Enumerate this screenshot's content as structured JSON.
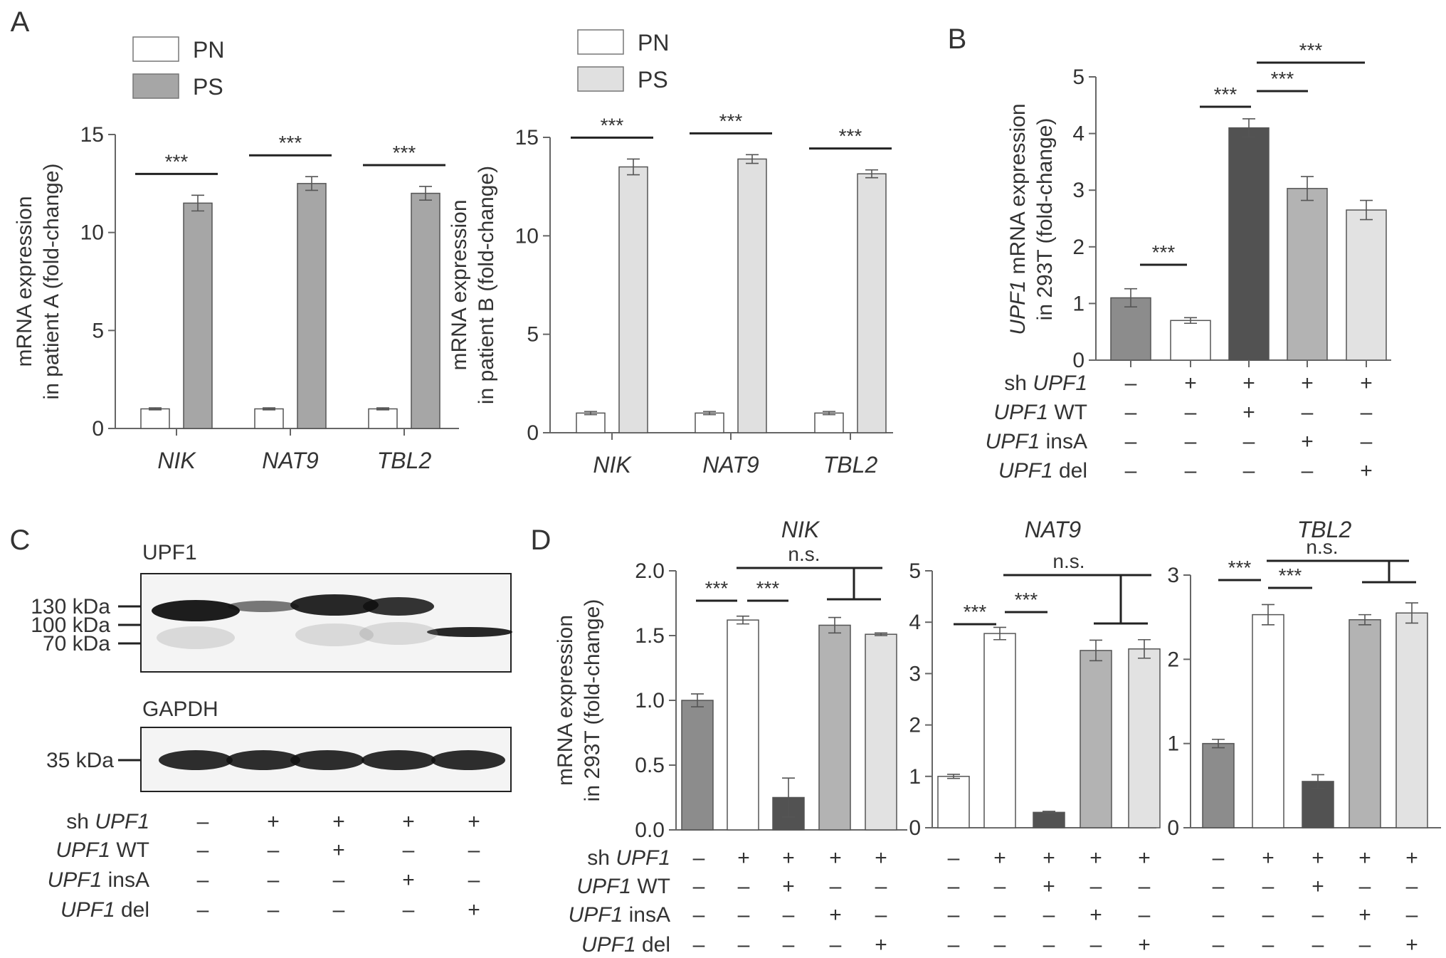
{
  "panels": {
    "A": "A",
    "B": "B",
    "C": "C",
    "D": "D"
  },
  "colors": {
    "PN": "#ffffff",
    "PS_A": "#a6a6a6",
    "PS_B": "#e0e0e0",
    "ctrl": "#8c8c8c",
    "sh": "#ffffff",
    "wt": "#525252",
    "ins": "#b3b3b3",
    "del": "#e2e2e2",
    "sig": "***",
    "ns": "n.s."
  },
  "chart_data": [
    {
      "id": "A1",
      "type": "bar",
      "categories": [
        "NIK",
        "NAT9",
        "TBL2"
      ],
      "series": [
        {
          "name": "PN",
          "values": [
            1.0,
            1.0,
            1.0
          ],
          "errors": [
            0.05,
            0.05,
            0.05
          ]
        },
        {
          "name": "PS",
          "values": [
            11.5,
            12.5,
            12.0
          ],
          "errors": [
            0.4,
            0.35,
            0.35
          ]
        }
      ],
      "ylabel_lines": [
        "mRNA expression",
        "in patient A (fold-change)"
      ],
      "ylim": [
        0,
        15
      ],
      "yticks": [
        0,
        5,
        10,
        15
      ],
      "legend": [
        "PN",
        "PS"
      ],
      "significance": [
        "***",
        "***",
        "***"
      ]
    },
    {
      "id": "A2",
      "type": "bar",
      "categories": [
        "NIK",
        "NAT9",
        "TBL2"
      ],
      "series": [
        {
          "name": "PN",
          "values": [
            1.0,
            1.0,
            1.0
          ],
          "errors": [
            0.08,
            0.08,
            0.08
          ]
        },
        {
          "name": "PS",
          "values": [
            13.5,
            13.9,
            13.15
          ],
          "errors": [
            0.4,
            0.22,
            0.2
          ]
        }
      ],
      "ylabel_lines": [
        "mRNA expression",
        "in patient B (fold-change)"
      ],
      "ylim": [
        0,
        15
      ],
      "yticks": [
        0,
        5,
        10,
        15
      ],
      "legend": [
        "PN",
        "PS"
      ],
      "significance": [
        "***",
        "***",
        "***"
      ]
    },
    {
      "id": "B",
      "type": "bar",
      "ylabel_italic": "UPF1",
      "ylabel_rest": " mRNA expression",
      "ylabel_line2": "in 293T (fold-change)",
      "ylim": [
        0,
        5
      ],
      "yticks": [
        0,
        1,
        2,
        3,
        4,
        5
      ],
      "values": [
        1.1,
        0.7,
        4.1,
        3.03,
        2.65
      ],
      "errors": [
        0.16,
        0.05,
        0.16,
        0.21,
        0.17
      ],
      "significance": [
        "***",
        "***",
        "***",
        "***"
      ]
    },
    {
      "id": "D1",
      "type": "bar",
      "title": "NIK",
      "ylabel_lines": [
        "mRNA expression",
        "in 293T (fold-change)"
      ],
      "ylim": [
        0,
        2.0
      ],
      "yticks": [
        "0.0",
        "0.5",
        "1.0",
        "1.5",
        "2.0"
      ],
      "values": [
        1.0,
        1.62,
        0.25,
        1.58,
        1.51
      ],
      "errors": [
        0.05,
        0.03,
        0.15,
        0.06,
        0.01
      ],
      "significance": [
        "***",
        "***"
      ],
      "ns": "n.s."
    },
    {
      "id": "D2",
      "type": "bar",
      "title": "NAT9",
      "ylim": [
        0,
        5
      ],
      "yticks": [
        0,
        1,
        2,
        3,
        4,
        5
      ],
      "values": [
        1.0,
        3.78,
        0.3,
        3.45,
        3.48
      ],
      "errors": [
        0.04,
        0.12,
        0.02,
        0.2,
        0.18
      ],
      "significance": [
        "***",
        "***"
      ],
      "ns": "n.s."
    },
    {
      "id": "D3",
      "type": "bar",
      "title": "TBL2",
      "ylim": [
        0,
        3
      ],
      "yticks": [
        0,
        1,
        2,
        3
      ],
      "values": [
        1.0,
        2.53,
        0.55,
        2.47,
        2.55
      ],
      "errors": [
        0.05,
        0.12,
        0.08,
        0.06,
        0.12
      ],
      "significance": [
        "***",
        "***"
      ],
      "ns": "n.s."
    }
  ],
  "blot": {
    "upf1_label": "UPF1",
    "gapdh_label": "GAPDH",
    "markers_upf1": [
      "130 kDa",
      "100 kDa",
      "70 kDa"
    ],
    "marker_gapdh": "35 kDa"
  },
  "conditions": {
    "row_labels": [
      {
        "prefix": "sh ",
        "italic": "UPF1",
        "suffix": ""
      },
      {
        "prefix": "",
        "italic": "UPF1",
        "suffix": " WT"
      },
      {
        "prefix": "",
        "italic": "UPF1",
        "suffix": " insA"
      },
      {
        "prefix": "",
        "italic": "UPF1",
        "suffix": " del"
      }
    ],
    "signs": [
      [
        "–",
        "+",
        "+",
        "+",
        "+"
      ],
      [
        "–",
        "–",
        "+",
        "–",
        "–"
      ],
      [
        "–",
        "–",
        "–",
        "+",
        "–"
      ],
      [
        "–",
        "–",
        "–",
        "–",
        "+"
      ]
    ]
  }
}
